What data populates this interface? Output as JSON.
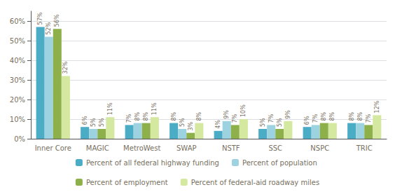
{
  "chart_data": {
    "type": "bar",
    "categories": [
      "Inner Core",
      "MAGIC",
      "MetroWest",
      "SWAP",
      "NSTF",
      "SSC",
      "NSPC",
      "TRIC"
    ],
    "series": [
      {
        "name": "Percent of all federal highway funding",
        "color": "#4bacc6",
        "values": [
          57,
          6,
          7,
          8,
          4,
          5,
          6,
          8
        ],
        "value_labels": [
          "57%",
          "6%",
          "7%",
          "8%",
          "4%",
          "5%",
          "6%",
          "8%"
        ]
      },
      {
        "name": "Percent of population",
        "color": "#9dd3e0",
        "values": [
          52,
          5,
          8,
          5,
          9,
          7,
          7,
          8
        ],
        "value_labels": [
          "52%",
          "5%",
          "8%",
          "5%",
          "9%",
          "7%",
          "7%",
          "8%"
        ]
      },
      {
        "name": "Percent of employment",
        "color": "#8db04a",
        "values": [
          56,
          5,
          8,
          3,
          7,
          5,
          8,
          7
        ],
        "value_labels": [
          "56%",
          "5%",
          "8%",
          "3%",
          "7%",
          "5%",
          "8%",
          "7%"
        ]
      },
      {
        "name": "Percent of federal-aid roadway miles",
        "color": "#d4e8a0",
        "values": [
          32,
          11,
          11,
          8,
          10,
          9,
          8,
          12
        ],
        "value_labels": [
          "32%",
          "11%",
          "11%",
          "8%",
          "10%",
          "9%",
          "8%",
          "12%"
        ]
      }
    ],
    "ylim": [
      0,
      65
    ],
    "yticks": [
      {
        "value": 0,
        "label": "0%"
      },
      {
        "value": 10,
        "label": "10%"
      },
      {
        "value": 20,
        "label": "20%"
      },
      {
        "value": 30,
        "label": "30%"
      },
      {
        "value": 40,
        "label": "40%"
      },
      {
        "value": 50,
        "label": "50%"
      },
      {
        "value": 60,
        "label": "60%"
      }
    ],
    "grid": true,
    "legend": "bottom",
    "data_labels": true
  }
}
